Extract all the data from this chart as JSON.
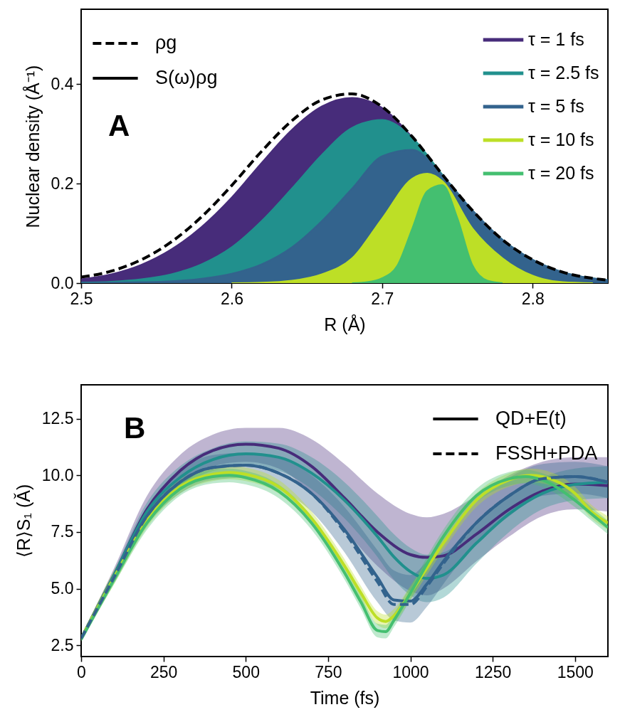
{
  "chart_data": [
    {
      "type": "area",
      "xlabel": "R (Å)",
      "ylabel": "Nuclear density (Å⁻¹)",
      "xlim": [
        2.5,
        2.85
      ],
      "ylim": [
        0,
        0.55
      ],
      "xticks": [
        2.5,
        2.6,
        2.7,
        2.8
      ],
      "yticks": [
        {
          "value": 0,
          "label": "0.0"
        },
        0.2,
        0.4
      ],
      "legend": "top right",
      "line_style": "solid",
      "annotations": [
        "A",
        "ρg",
        "S(ω)ρg"
      ],
      "x": [
        2.5,
        2.52,
        2.54,
        2.56,
        2.58,
        2.6,
        2.62,
        2.64,
        2.66,
        2.68,
        2.7,
        2.72,
        2.74,
        2.76,
        2.78,
        2.8,
        2.82,
        2.84,
        2.85
      ],
      "series": [
        {
          "type": "line",
          "line_style": "dashed",
          "color": "#000000",
          "values": [
            0.012,
            0.024,
            0.047,
            0.083,
            0.133,
            0.196,
            0.265,
            0.326,
            0.368,
            0.38,
            0.354,
            0.294,
            0.218,
            0.146,
            0.087,
            0.047,
            0.022,
            0.0095,
            0.006
          ]
        },
        {
          "name": "τ = 1 fs",
          "color": "#472c7a",
          "values": [
            0.008,
            0.018,
            0.037,
            0.068,
            0.113,
            0.172,
            0.242,
            0.308,
            0.355,
            0.372,
            0.352,
            0.293,
            0.217,
            0.145,
            0.086,
            0.046,
            0.021,
            0.009,
            0.005
          ]
        },
        {
          "name": "τ = 2.5 fs",
          "color": "#21908d",
          "values": [
            0.001,
            0.003,
            0.008,
            0.018,
            0.038,
            0.072,
            0.125,
            0.19,
            0.258,
            0.312,
            0.328,
            0.292,
            0.218,
            0.146,
            0.087,
            0.047,
            0.022,
            0.0095,
            0.006
          ]
        },
        {
          "name": "τ = 5 fs",
          "color": "#33638d",
          "values": [
            0,
            0.001,
            0.002,
            0.004,
            0.009,
            0.019,
            0.038,
            0.072,
            0.125,
            0.19,
            0.255,
            0.268,
            0.216,
            0.146,
            0.087,
            0.047,
            0.022,
            0.0095,
            0.006
          ]
        },
        {
          "name": "τ = 10 fs",
          "color": "#bddf26",
          "x": [
            2.6,
            2.62,
            2.64,
            2.66,
            2.68,
            2.7,
            2.72,
            2.73,
            2.74,
            2.76,
            2.78,
            2.8,
            2.82,
            2.84
          ],
          "values": [
            0,
            0.001,
            0.005,
            0.018,
            0.05,
            0.13,
            0.21,
            0.22,
            0.205,
            0.11,
            0.05,
            0.015,
            0.002,
            0
          ]
        },
        {
          "name": "τ = 20 fs",
          "color": "#44bf70",
          "x": [
            2.68,
            2.69,
            2.7,
            2.71,
            2.72,
            2.73,
            2.74,
            2.75,
            2.76,
            2.77,
            2.78
          ],
          "values": [
            0,
            0.002,
            0.01,
            0.035,
            0.11,
            0.185,
            0.197,
            0.131,
            0.036,
            0.005,
            0
          ]
        }
      ]
    },
    {
      "type": "line",
      "xlabel": "Time (fs)",
      "ylabel": "⟨R⟩S₁ (Ǎ)",
      "xlim": [
        0,
        1600
      ],
      "ylim": [
        2,
        14
      ],
      "xticks": [
        0,
        250,
        500,
        750,
        1000,
        1250,
        1500
      ],
      "yticks": [
        2.5,
        {
          "value": 5,
          "label": "5.0"
        },
        7.5,
        {
          "value": 10,
          "label": "10.0"
        },
        12.5
      ],
      "legend": "top right",
      "line_style": "solid",
      "annotations": [
        "B",
        "QD+E(t)",
        "FSSH+PDA"
      ],
      "series": [
        {
          "color": "#472c7a",
          "x": [
            0,
            100,
            200,
            300,
            400,
            500,
            600,
            700,
            800,
            900,
            1000,
            1050,
            1100,
            1200,
            1300,
            1400,
            1500,
            1600
          ],
          "values": [
            2.8,
            5.6,
            8.5,
            10.2,
            11.1,
            11.38,
            11.2,
            10.4,
            9.0,
            7.5,
            6.5,
            6.38,
            6.45,
            7.4,
            8.5,
            9.3,
            9.62,
            9.55
          ],
          "upper": [
            2.9,
            5.9,
            9.1,
            10.9,
            11.8,
            12.1,
            12.1,
            11.6,
            10.5,
            9.2,
            8.3,
            8.15,
            8.3,
            9.1,
            10.0,
            10.6,
            10.8,
            10.8
          ],
          "lower": [
            2.7,
            5.3,
            7.9,
            9.5,
            10.4,
            10.6,
            10.3,
            9.2,
            7.6,
            6.0,
            4.9,
            4.7,
            5.0,
            6.2,
            7.3,
            8.2,
            8.5,
            8.4
          ]
        },
        {
          "color": "#21908d",
          "x": [
            0,
            100,
            200,
            300,
            400,
            500,
            600,
            700,
            800,
            900,
            950,
            1000,
            1050,
            1100,
            1200,
            1300,
            1400,
            1500,
            1600
          ],
          "values": [
            2.8,
            5.6,
            8.4,
            9.9,
            10.7,
            10.95,
            10.8,
            10.1,
            8.9,
            7.3,
            6.4,
            5.75,
            5.45,
            5.6,
            7.0,
            8.3,
            9.2,
            9.6,
            9.7
          ],
          "upper": [
            2.9,
            5.8,
            8.8,
            10.4,
            11.2,
            11.5,
            11.4,
            10.8,
            9.7,
            8.2,
            7.4,
            6.8,
            6.5,
            6.6,
            7.9,
            9.1,
            9.9,
            10.3,
            10.4
          ],
          "lower": [
            2.7,
            5.4,
            8.0,
            9.4,
            10.2,
            10.4,
            10.2,
            9.4,
            8.1,
            6.4,
            5.4,
            4.7,
            4.4,
            4.6,
            6.1,
            7.5,
            8.5,
            8.9,
            9.0
          ]
        },
        {
          "color": "#33638d",
          "x": [
            0,
            100,
            200,
            300,
            400,
            500,
            600,
            700,
            800,
            900,
            950,
            1000,
            1050,
            1100,
            1200,
            1300,
            1400,
            1500,
            1600
          ],
          "values": [
            2.8,
            5.5,
            8.2,
            9.7,
            10.35,
            10.45,
            10.1,
            9.2,
            7.6,
            5.5,
            4.5,
            4.45,
            5.2,
            6.2,
            7.9,
            9.1,
            9.85,
            9.95,
            9.7
          ],
          "upper": [
            2.9,
            5.7,
            8.6,
            10.2,
            10.9,
            11.0,
            10.8,
            10.0,
            8.6,
            6.7,
            5.8,
            5.6,
            6.2,
            7.1,
            8.8,
            9.9,
            10.5,
            10.6,
            10.4
          ],
          "lower": [
            2.7,
            5.3,
            7.8,
            9.2,
            9.8,
            9.9,
            9.4,
            8.4,
            6.6,
            4.4,
            3.6,
            3.5,
            4.2,
            5.2,
            7.0,
            8.2,
            9.1,
            9.2,
            9.0
          ]
        },
        {
          "color": "#bddf26",
          "x": [
            0,
            100,
            200,
            300,
            400,
            450,
            500,
            600,
            700,
            800,
            850,
            900,
            925,
            950,
            1000,
            1100,
            1200,
            1300,
            1366,
            1450,
            1500,
            1550,
            1600
          ],
          "values": [
            2.8,
            5.5,
            8.0,
            9.5,
            10.05,
            10.13,
            10.05,
            9.5,
            8.1,
            6.0,
            4.8,
            3.7,
            3.55,
            3.8,
            4.8,
            7.0,
            8.9,
            9.8,
            10.0,
            9.7,
            9.2,
            8.4,
            7.9
          ],
          "upper": [
            2.9,
            5.8,
            8.3,
            9.8,
            10.35,
            10.43,
            10.35,
            9.8,
            8.4,
            6.3,
            5.1,
            4.0,
            3.85,
            4.1,
            5.1,
            7.3,
            9.2,
            10.1,
            10.3,
            10.0,
            9.5,
            8.7,
            8.2
          ],
          "lower": [
            2.7,
            5.2,
            7.7,
            9.2,
            9.75,
            9.83,
            9.75,
            9.2,
            7.8,
            5.7,
            4.5,
            3.4,
            3.25,
            3.5,
            4.5,
            6.7,
            8.6,
            9.5,
            9.7,
            9.4,
            8.9,
            8.1,
            7.6
          ]
        },
        {
          "color": "#44bf70",
          "x": [
            0,
            100,
            200,
            300,
            400,
            450,
            500,
            600,
            700,
            800,
            850,
            900,
            925,
            950,
            1000,
            1100,
            1200,
            1300,
            1350,
            1400,
            1500,
            1550,
            1600
          ],
          "values": [
            2.75,
            5.4,
            7.9,
            9.4,
            9.95,
            10.0,
            9.9,
            9.3,
            7.9,
            5.7,
            4.4,
            3.15,
            3.1,
            3.6,
            4.8,
            7.3,
            9.1,
            9.85,
            9.95,
            9.8,
            8.9,
            8.3,
            7.7
          ],
          "upper": [
            2.85,
            5.6,
            8.2,
            9.7,
            10.25,
            10.3,
            10.2,
            9.6,
            8.2,
            6.0,
            4.7,
            3.45,
            3.4,
            3.9,
            5.1,
            7.6,
            9.4,
            10.15,
            10.25,
            10.1,
            9.2,
            8.6,
            8.0
          ],
          "lower": [
            2.65,
            5.2,
            7.6,
            9.1,
            9.65,
            9.7,
            9.6,
            9.0,
            7.6,
            5.4,
            4.1,
            2.85,
            2.8,
            3.3,
            4.5,
            7.0,
            8.8,
            9.55,
            9.65,
            9.5,
            8.6,
            8.0,
            7.4
          ]
        },
        {
          "line_style": "dashed",
          "color": "#33638d",
          "x": [
            0,
            100,
            200,
            300,
            400,
            500,
            600,
            700,
            800,
            900,
            950,
            1000,
            1050,
            1100,
            1200,
            1300,
            1400,
            1500,
            1600
          ],
          "values": [
            2.8,
            5.5,
            8.2,
            9.7,
            10.35,
            10.45,
            10.1,
            9.2,
            7.5,
            5.3,
            4.3,
            4.3,
            5.1,
            6.1,
            7.9,
            9.1,
            9.85,
            9.95,
            9.7
          ]
        }
      ]
    }
  ]
}
